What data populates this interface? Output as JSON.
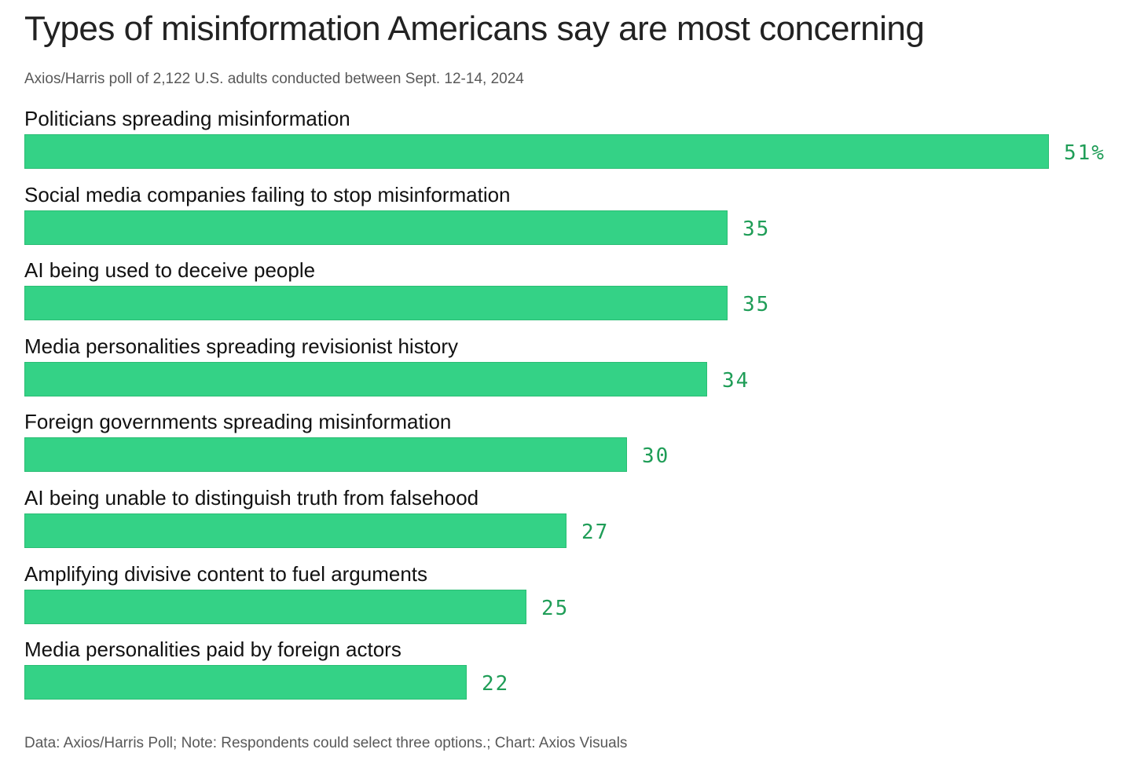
{
  "title": "Types of misinformation Americans say are most concerning",
  "subtitle": "Axios/Harris poll of 2,122 U.S. adults conducted between Sept. 12-14, 2024",
  "footer": "Data: Axios/Harris Poll; Note: Respondents could select three options.; Chart: Axios Visuals",
  "colors": {
    "bar": "#34d286",
    "value_text": "#1f9d57"
  },
  "chart_data": {
    "type": "bar",
    "orientation": "horizontal",
    "title": "Types of misinformation Americans say are most concerning",
    "subtitle": "Axios/Harris poll of 2,122 U.S. adults conducted between Sept. 12-14, 2024",
    "categories": [
      "Politicians spreading misinformation",
      "Social media companies failing to stop misinformation",
      "AI being used to deceive people",
      "Media personalities spreading revisionist history",
      "Foreign governments spreading misinformation",
      "AI being unable to distinguish truth from falsehood",
      "Amplifying divisive content to fuel arguments",
      "Media personalities paid by foreign actors"
    ],
    "values": [
      51,
      35,
      35,
      34,
      30,
      27,
      25,
      22
    ],
    "value_labels": [
      "51%",
      "35",
      "35",
      "34",
      "30",
      "27",
      "25",
      "22"
    ],
    "unit": "%",
    "xlim": [
      0,
      51
    ],
    "grid": false,
    "legend": "none"
  }
}
